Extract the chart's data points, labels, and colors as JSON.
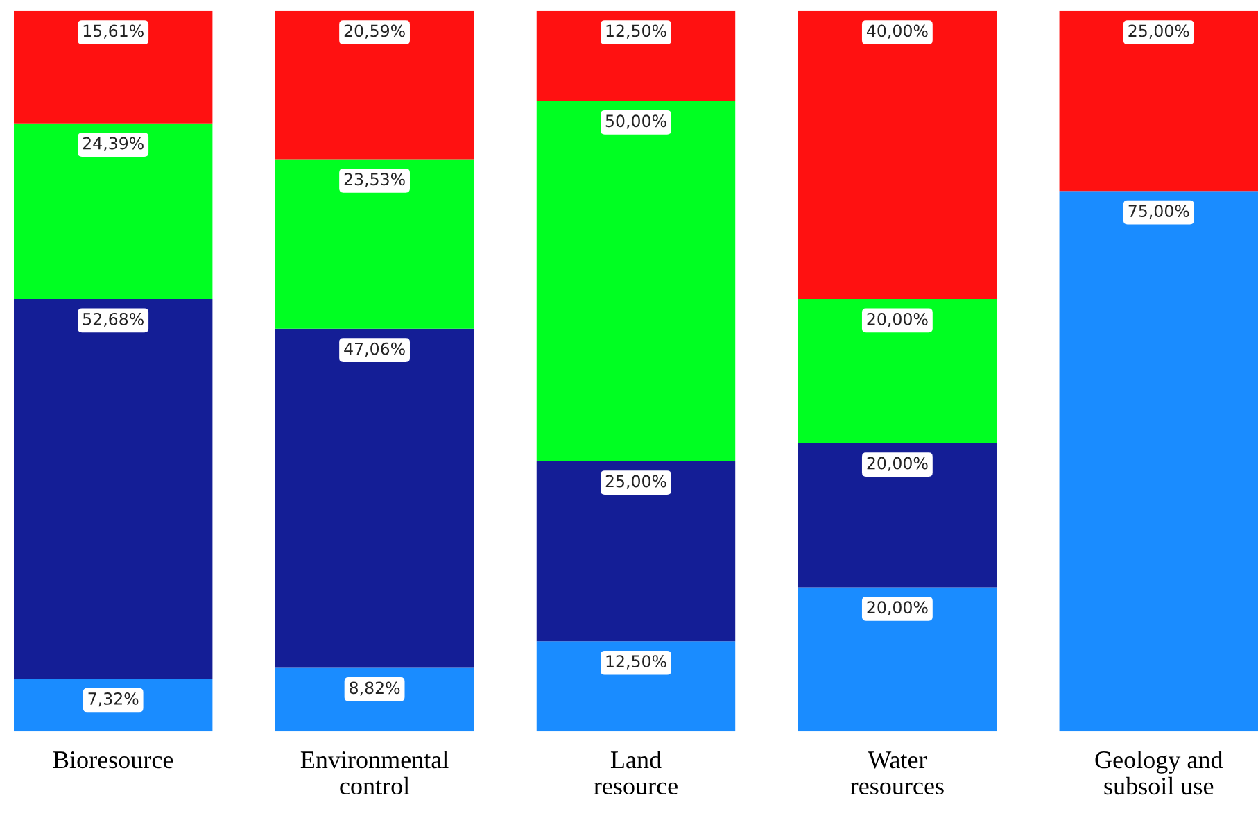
{
  "chart_data": {
    "type": "bar",
    "stacked": true,
    "categories": [
      "Bioresource",
      "Environmental\ncontrol",
      "Land\nresource",
      "Water\nresources",
      "Geology and\nsubsoil use"
    ],
    "series": [
      {
        "color": "#1a8cff",
        "values": [
          7.32,
          8.82,
          12.5,
          20.0,
          75.0
        ],
        "value_labels": [
          "7,32%",
          "8,82%",
          "12,50%",
          "20,00%",
          "75,00%"
        ]
      },
      {
        "color": "#141e96",
        "values": [
          52.68,
          47.06,
          25.0,
          20.0,
          0
        ],
        "value_labels": [
          "52,68%",
          "47,06%",
          "25,00%",
          "20,00%",
          null
        ]
      },
      {
        "color": "#00ff22",
        "values": [
          24.39,
          23.53,
          50.0,
          20.0,
          0
        ],
        "value_labels": [
          "24,39%",
          "23,53%",
          "50,00%",
          "20,00%",
          null
        ]
      },
      {
        "color": "#ff1111",
        "values": [
          15.61,
          20.59,
          12.5,
          40.0,
          25.0
        ],
        "value_labels": [
          "15,61%",
          "20,59%",
          "12,50%",
          "40,00%",
          "25,00%"
        ]
      }
    ],
    "grid": false,
    "legend": false
  }
}
